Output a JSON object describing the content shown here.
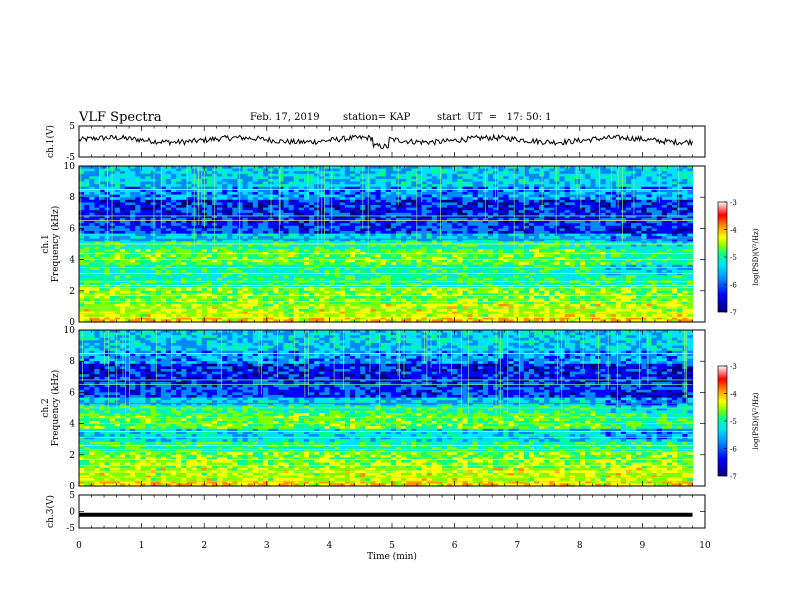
{
  "header": {
    "title": "VLF Spectra",
    "date": "Feb. 17, 2019",
    "station": "station= KAP",
    "start_time": "start  UT  =   17: 50: 1"
  },
  "chart_data": [
    {
      "type": "line",
      "panel": "ch1-waveform",
      "ylabel": "ch.1(V)",
      "ylim": [
        -5,
        5
      ],
      "yticks": [
        "5",
        "-5"
      ],
      "xlim": [
        0,
        10
      ],
      "visible_data_end": 9.8,
      "approx_level": 0.5
    },
    {
      "type": "heatmap",
      "panel": "ch1-spectrogram",
      "ylabel": "ch.1\nFrequency (kHz)",
      "ylim": [
        0,
        10
      ],
      "yticks": [
        "0",
        "2",
        "4",
        "6",
        "8",
        "10"
      ],
      "xlim": [
        0,
        10
      ],
      "visible_data_end": 9.8,
      "colorbar": {
        "label": "log(PSD)(V²/Hz)",
        "range": [
          -7,
          -3
        ],
        "ticks": [
          "-3",
          "-4",
          "-5",
          "-6",
          "-7"
        ]
      }
    },
    {
      "type": "heatmap",
      "panel": "ch2-spectrogram",
      "ylabel": "ch.2\nFrequency (kHz)",
      "ylim": [
        0,
        10
      ],
      "yticks": [
        "0",
        "2",
        "4",
        "6",
        "8",
        "10"
      ],
      "xlim": [
        0,
        10
      ],
      "visible_data_end": 9.8,
      "colorbar": {
        "label": "log(PSD)(V²/Hz)",
        "range": [
          -7,
          -3
        ],
        "ticks": [
          "-3",
          "-4",
          "-5",
          "-6",
          "-7"
        ]
      }
    },
    {
      "type": "line",
      "panel": "ch3-waveform",
      "ylabel": "ch.3(V)",
      "ylim": [
        -5,
        5
      ],
      "yticks": [
        "5",
        "0",
        "-5"
      ],
      "xlim": [
        0,
        10
      ],
      "visible_data_end": 9.8,
      "approx_level": -1.0
    }
  ],
  "x_axis": {
    "label": "Time (min)",
    "ticks": [
      "0",
      "1",
      "2",
      "3",
      "4",
      "5",
      "6",
      "7",
      "8",
      "9",
      "10"
    ]
  },
  "colors": {
    "colormap": [
      "#00007a",
      "#0000ff",
      "#0088ff",
      "#00e0ff",
      "#00ff90",
      "#80ff00",
      "#ffff00",
      "#ff9000",
      "#ff0000",
      "#ff9090",
      "#ffffff"
    ],
    "line": "#000000"
  }
}
